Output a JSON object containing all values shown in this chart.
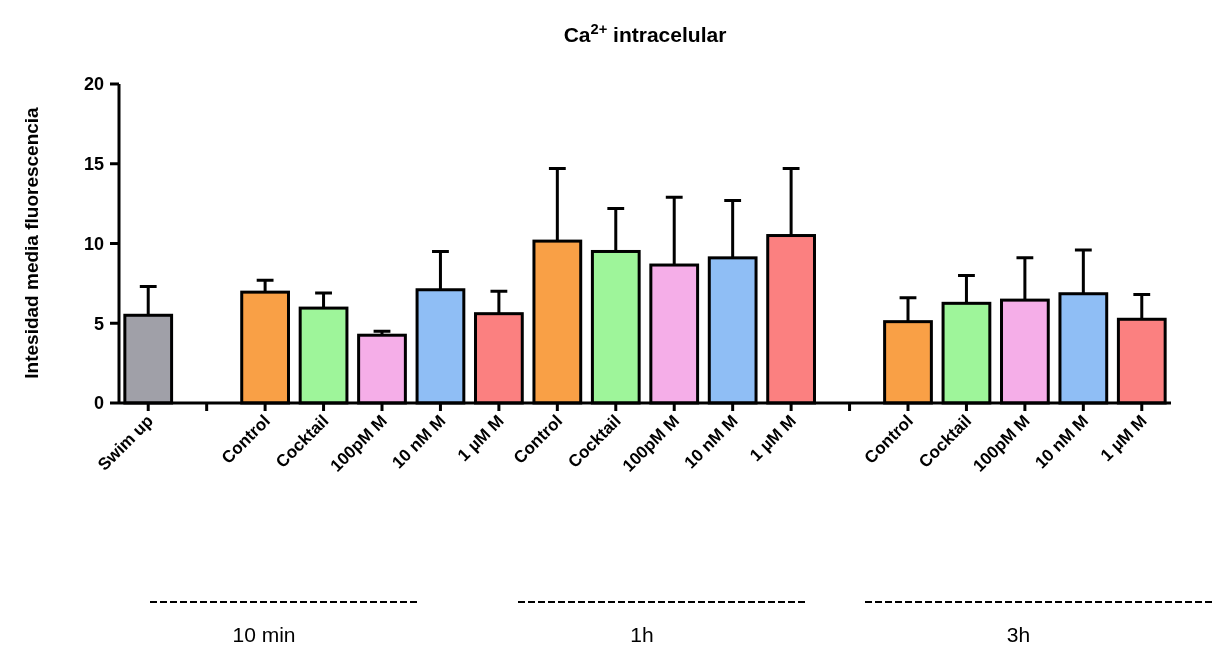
{
  "chart_data": {
    "type": "bar",
    "title": "Ca$^{2+}$   intracelular",
    "ylabel": "Intesidad media fluorescencia",
    "categories": [
      "Swim up",
      null,
      "Control",
      "Cocktail",
      "100pM M",
      "10 nM M",
      "1 µM M",
      "Control",
      "Cocktail",
      "100pM M",
      "10 nM M",
      "1 µM M",
      null,
      "Control",
      "Cocktail",
      "100pM M",
      "10 nM M",
      "1 µM M"
    ],
    "values": [
      5.5,
      null,
      6.95,
      5.95,
      4.25,
      7.1,
      5.6,
      10.15,
      9.5,
      8.65,
      9.1,
      10.5,
      null,
      5.1,
      6.25,
      6.45,
      6.85,
      5.25
    ],
    "errors": [
      [
        5.5,
        7.3
      ],
      null,
      [
        6.95,
        7.7
      ],
      [
        5.95,
        6.9
      ],
      [
        4.25,
        4.5
      ],
      [
        7.1,
        9.5
      ],
      [
        5.6,
        7.0
      ],
      [
        10.15,
        14.7
      ],
      [
        9.5,
        12.2
      ],
      [
        8.65,
        12.9
      ],
      [
        9.1,
        12.7
      ],
      [
        10.5,
        14.7
      ],
      null,
      [
        5.1,
        6.6
      ],
      [
        6.25,
        8.0
      ],
      [
        6.45,
        9.1
      ],
      [
        6.85,
        9.6
      ],
      [
        5.25,
        6.8
      ]
    ],
    "colors": [
      "#a0a0a8",
      null,
      "#f9a046",
      "#9ef59a",
      "#f5aee8",
      "#8fbef5",
      "#fb8080",
      "#f9a046",
      "#9ef59a",
      "#f5aee8",
      "#8fbef5",
      "#fb8080",
      null,
      "#f9a046",
      "#9ef59a",
      "#f5aee8",
      "#8fbef5",
      "#fb8080"
    ],
    "ylim": [
      0,
      20
    ],
    "yticks": [
      0,
      5,
      10,
      15,
      20
    ],
    "grid": false,
    "annotations": [
      "10 min",
      "1h",
      "3h"
    ]
  }
}
